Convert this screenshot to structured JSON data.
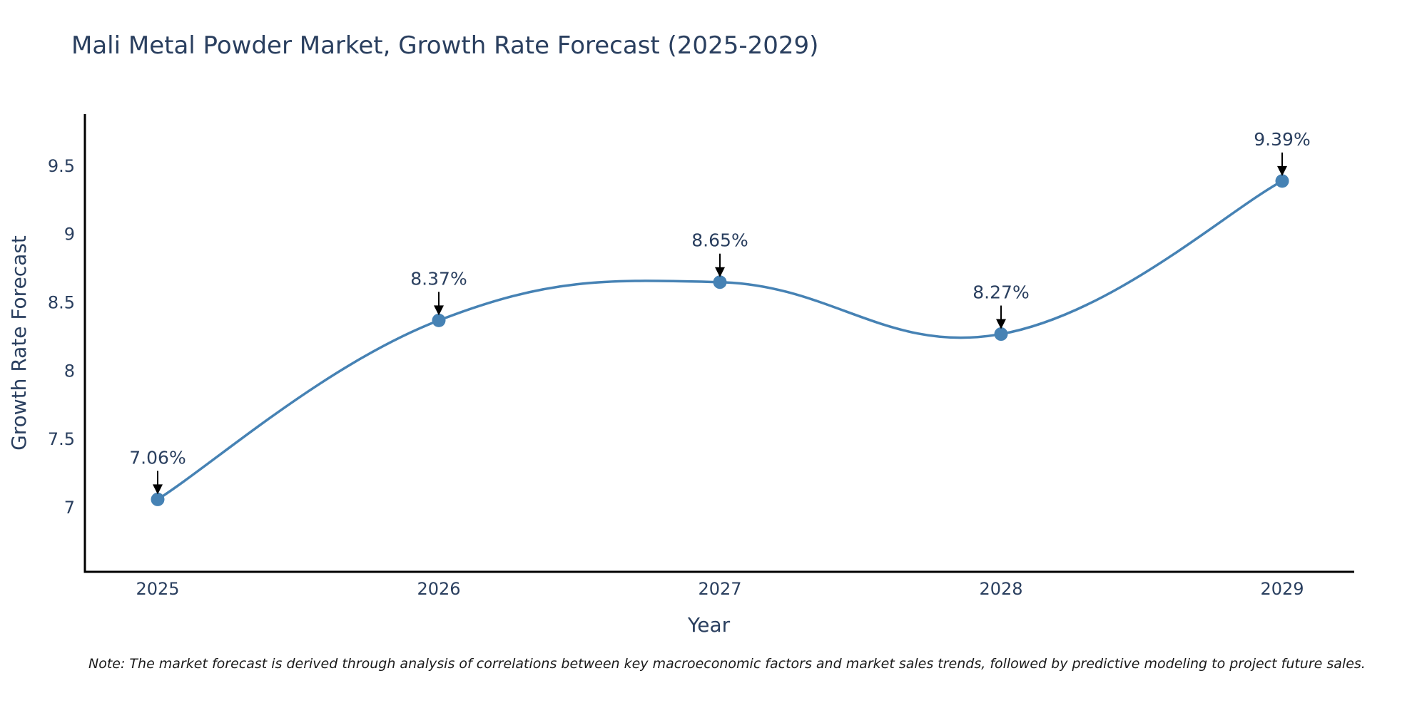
{
  "chart_data": {
    "type": "line",
    "title": "Mali Metal Powder Market, Growth Rate Forecast (2025-2029)",
    "xlabel": "Year",
    "ylabel": "Growth Rate Forecast",
    "categories": [
      "2025",
      "2026",
      "2027",
      "2028",
      "2029"
    ],
    "values": [
      7.06,
      8.37,
      8.65,
      8.27,
      9.39
    ],
    "annotations": [
      "7.06%",
      "8.37%",
      "8.65%",
      "8.27%",
      "9.39%"
    ],
    "yticks": [
      7,
      7.5,
      8,
      8.5,
      9,
      9.5
    ],
    "ytick_labels": [
      "7",
      "7.5",
      "8",
      "8.5",
      "9",
      "9.5"
    ],
    "ylim": [
      6.53,
      9.88
    ],
    "line_color": "#4682b4",
    "axis_color": "#000000",
    "note": "Note: The market forecast is derived through analysis of correlations between key macroeconomic factors and market sales trends, followed by predictive modeling to project future sales."
  }
}
